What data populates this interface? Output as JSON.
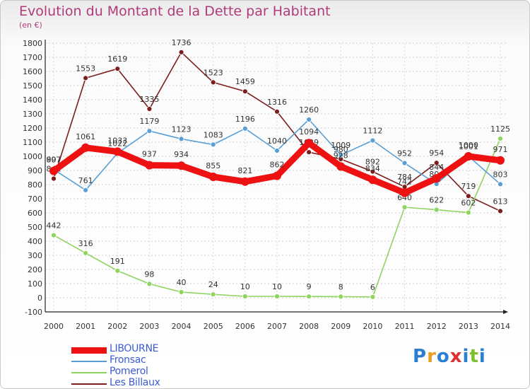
{
  "header": {
    "title": "Evolution du Montant de la Dette par Habitant",
    "unit": "(en €)"
  },
  "logo": {
    "letters": [
      "P",
      "r",
      "o",
      "x",
      "i",
      "t",
      "i"
    ],
    "colors": [
      "#2b7fd3",
      "#e8a020",
      "#2b7fd3",
      "#e23030",
      "#2b7fd3",
      "#7bbf2a",
      "#2b7fd3"
    ]
  },
  "chart_data": {
    "type": "line",
    "title": "Evolution du Montant de la Dette par Habitant",
    "ylabel": "(en €)",
    "xlabel": "",
    "x": [
      "2000",
      "2001",
      "2002",
      "2003",
      "2004",
      "2005",
      "2006",
      "2007",
      "2008",
      "2009",
      "2010",
      "2011",
      "2012",
      "2013",
      "2014"
    ],
    "ylim": [
      -100,
      1800
    ],
    "yticks": [
      "-100",
      "0",
      "100",
      "200",
      "300",
      "400",
      "500",
      "600",
      "700",
      "800",
      "900",
      "1000",
      "1100",
      "1200",
      "1300",
      "1400",
      "1500",
      "1600",
      "1700",
      "1800"
    ],
    "grid": true,
    "legend_position": "bottom-left",
    "series": [
      {
        "name": "Les Billaux",
        "color": "#7a1e1e",
        "values": [
          842,
          1553,
          1619,
          1335,
          1736,
          1523,
          1459,
          1316,
          1029,
          980,
          892,
          784,
          954,
          719,
          613
        ],
        "labels": [
          "842",
          "1553",
          "1619",
          "1335",
          "1736",
          "1523",
          "1459",
          "1316",
          "1029",
          "980",
          "892",
          "784",
          "954",
          "719",
          "613"
        ]
      },
      {
        "name": "Pomerol",
        "color": "#8fd460",
        "values": [
          442,
          316,
          191,
          98,
          40,
          24,
          10,
          10,
          9,
          8,
          6,
          640,
          622,
          602,
          1125
        ],
        "labels": [
          "442",
          "316",
          "191",
          "98",
          "40",
          "24",
          "10",
          "10",
          "9",
          "8",
          "6",
          "640",
          "622",
          "602",
          "1125"
        ]
      },
      {
        "name": "Fronsac",
        "color": "#5a9fd4",
        "values": [
          907,
          761,
          1022,
          1179,
          1123,
          1083,
          1196,
          1040,
          1260,
          1009,
          1112,
          952,
          804,
          1001,
          803
        ],
        "labels": [
          "907",
          "761",
          "1022",
          "1179",
          "1123",
          "1083",
          "1196",
          "1040",
          "1260",
          "1009",
          "1112",
          "952",
          "804",
          "1001",
          "803"
        ]
      },
      {
        "name": "LIBOURNE",
        "color": "#ee1111",
        "values": [
          897,
          1061,
          1033,
          937,
          934,
          855,
          821,
          862,
          1094,
          928,
          834,
          742,
          844,
          1000,
          971
        ],
        "labels": [
          "897",
          "1061",
          "1033",
          "937",
          "934",
          "855",
          "821",
          "862",
          "1094",
          "928",
          "834",
          "742",
          "844",
          "1000",
          "971"
        ]
      }
    ],
    "legend_order": [
      "LIBOURNE",
      "Fronsac",
      "Pomerol",
      "Les Billaux"
    ]
  }
}
